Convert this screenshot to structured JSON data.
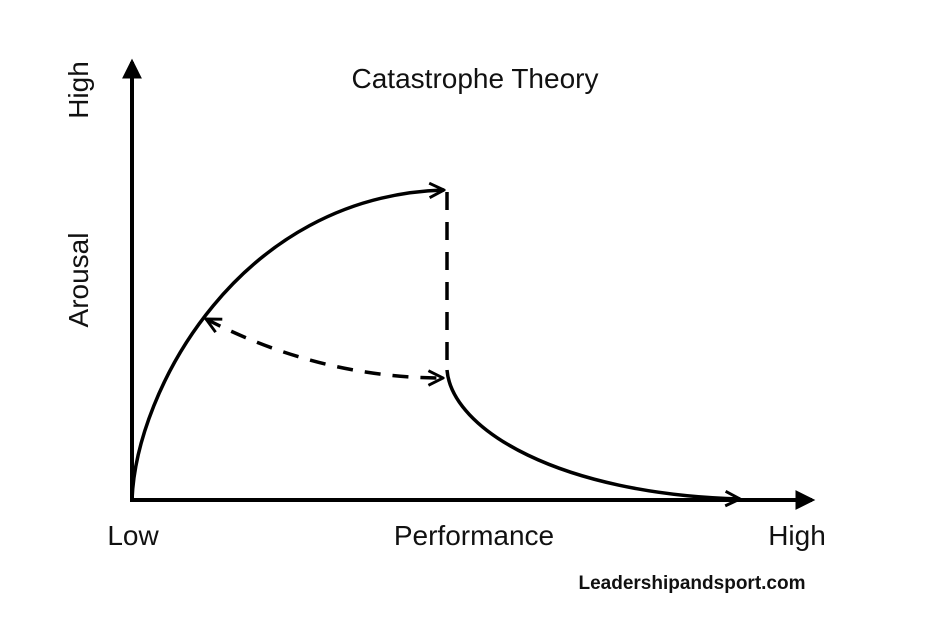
{
  "title": "Catastrophe Theory",
  "y_axis": {
    "label": "Arousal",
    "high_label": "High"
  },
  "x_axis": {
    "label": "Performance",
    "low_label": "Low",
    "high_label": "High"
  },
  "footer": "Leadershipandsport.com",
  "colors": {
    "line": "#000000",
    "text": "#111111",
    "background": "#ffffff"
  }
}
